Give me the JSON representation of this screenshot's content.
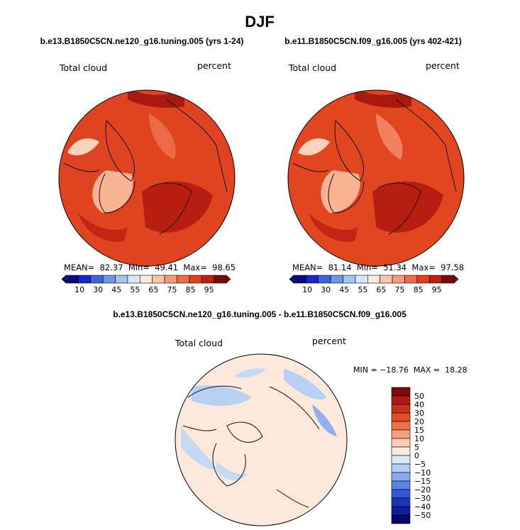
{
  "season_title": "DJF",
  "panels": [
    {
      "title": "b.e13.B1850C5CN.ne120_g16.tuning.005 (yrs 1-24)",
      "variable": "Total cloud",
      "units": "percent",
      "stats_text": "MEAN=  82.37  Min=  49.41  Max=  98.65"
    },
    {
      "title": "b.e11.B1850C5CN.f09_g16.005 (yrs 402-421)",
      "variable": "Total cloud",
      "units": "percent",
      "stats_text": "MEAN=  81.14  Min=  51.34  Max=  97.58"
    },
    {
      "title": "b.e13.B1850C5CN.ne120_g16.tuning.005 - b.e11.B1850C5CN.f09_g16.005",
      "variable": "Total cloud",
      "units": "percent",
      "stats_text": "MIN = −18.76  MAX =  18.28"
    }
  ],
  "chart_data": [
    {
      "type": "heatmap",
      "projection": "north-polar-stereographic",
      "title": "b.e13.B1850C5CN.ne120_g16.tuning.005 (yrs 1-24)",
      "variable": "Total cloud",
      "units": "percent",
      "mean": 82.37,
      "min": 49.41,
      "max": 98.65,
      "colorbar_orientation": "horizontal",
      "colorbar_ticks": [
        "10",
        "30",
        "45",
        "55",
        "65",
        "75",
        "85",
        "95"
      ],
      "colorbar_colors": [
        "#0a0a82",
        "#1428c8",
        "#3c64dc",
        "#6e96eb",
        "#a5c3f5",
        "#d7e6fa",
        "#fde9db",
        "#fbc5a9",
        "#f8997a",
        "#f06a45",
        "#e0401e",
        "#c01e10",
        "#7a0a0a"
      ]
    },
    {
      "type": "heatmap",
      "projection": "north-polar-stereographic",
      "title": "b.e11.B1850C5CN.f09_g16.005 (yrs 402-421)",
      "variable": "Total cloud",
      "units": "percent",
      "mean": 81.14,
      "min": 51.34,
      "max": 97.58,
      "colorbar_orientation": "horizontal",
      "colorbar_ticks": [
        "10",
        "30",
        "45",
        "55",
        "65",
        "75",
        "85",
        "95"
      ],
      "colorbar_colors": [
        "#0a0a82",
        "#1428c8",
        "#3c64dc",
        "#6e96eb",
        "#a5c3f5",
        "#d7e6fa",
        "#fde9db",
        "#fbc5a9",
        "#f8997a",
        "#f06a45",
        "#e0401e",
        "#c01e10",
        "#7a0a0a"
      ]
    },
    {
      "type": "heatmap",
      "projection": "north-polar-stereographic",
      "title": "b.e13.B1850C5CN.ne120_g16.tuning.005 - b.e11.B1850C5CN.f09_g16.005",
      "variable": "Total cloud",
      "units": "percent",
      "min": -18.76,
      "max": 18.28,
      "colorbar_orientation": "vertical",
      "colorbar_ticks": [
        "50",
        "40",
        "30",
        "20",
        "15",
        "10",
        "5",
        "0",
        "−5",
        "−10",
        "−15",
        "−20",
        "−30",
        "−40",
        "−50"
      ],
      "colorbar_colors": [
        "#7a0a0a",
        "#b01a10",
        "#d0301a",
        "#e84a28",
        "#f37045",
        "#f7a07e",
        "#fbcdb2",
        "#fde9db",
        "#d9e7fa",
        "#b4cdf5",
        "#88aaf0",
        "#5a82e6",
        "#3058d8",
        "#1a36b8",
        "#0c1e96",
        "#05086e"
      ]
    }
  ]
}
